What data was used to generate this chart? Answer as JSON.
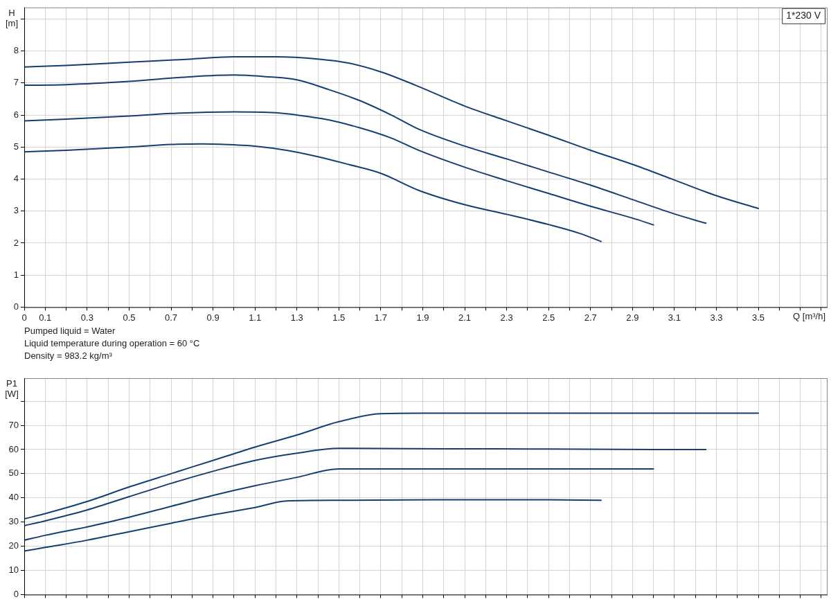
{
  "chart_data": [
    {
      "type": "line",
      "title": "1*230 V",
      "xlabel": "Q [m³/h]",
      "ylabel": "H [m]",
      "marker": "none",
      "grid": true,
      "xlim": [
        0,
        3.83
      ],
      "ylim": [
        0,
        9.36
      ],
      "xticks": [
        0,
        0.1,
        {
          "value": 0.2,
          "label": null
        },
        0.3,
        {
          "value": 0.4,
          "label": null
        },
        0.5,
        {
          "value": 0.6,
          "label": null
        },
        0.7,
        {
          "value": 0.8,
          "label": null
        },
        0.9,
        {
          "value": 1.0,
          "label": null
        },
        1.1,
        {
          "value": 1.2,
          "label": null
        },
        1.3,
        {
          "value": 1.4,
          "label": null
        },
        1.5,
        {
          "value": 1.6,
          "label": null
        },
        1.7,
        {
          "value": 1.8,
          "label": null
        },
        1.9,
        {
          "value": 2.0,
          "label": null
        },
        2.1,
        {
          "value": 2.2,
          "label": null
        },
        2.3,
        {
          "value": 2.4,
          "label": null
        },
        2.5,
        {
          "value": 2.6,
          "label": null
        },
        2.7,
        {
          "value": 2.8,
          "label": null
        },
        2.9,
        {
          "value": 3.0,
          "label": null
        },
        3.1,
        {
          "value": 3.2,
          "label": null
        },
        3.3,
        {
          "value": 3.4,
          "label": null
        },
        3.5,
        {
          "value": 3.6,
          "label": null
        },
        {
          "value": 3.7,
          "label": null
        },
        {
          "value": 3.8,
          "label": null
        }
      ],
      "yticks": [
        0,
        1,
        2,
        3,
        4,
        5,
        6,
        7,
        8,
        {
          "value": 9,
          "label": null
        }
      ],
      "series": [
        {
          "color": "#143f6e",
          "x": [
            0,
            0.2,
            0.5,
            0.8,
            1.0,
            1.2,
            1.4,
            1.55,
            1.7,
            1.87,
            2.1,
            2.3,
            2.5,
            2.7,
            2.9,
            3.1,
            3.3,
            3.5
          ],
          "values": [
            7.5,
            7.55,
            7.65,
            7.75,
            7.82,
            7.82,
            7.75,
            7.62,
            7.35,
            6.92,
            6.28,
            5.82,
            5.37,
            4.9,
            4.46,
            3.97,
            3.48,
            3.08
          ]
        },
        {
          "color": "#143f6e",
          "x": [
            0,
            0.2,
            0.5,
            0.8,
            1.0,
            1.15,
            1.3,
            1.45,
            1.6,
            1.75,
            1.88,
            2.1,
            2.3,
            2.5,
            2.7,
            2.9,
            3.1,
            3.25
          ],
          "values": [
            6.93,
            6.95,
            7.05,
            7.2,
            7.25,
            7.2,
            7.1,
            6.8,
            6.45,
            6.0,
            5.56,
            5.03,
            4.63,
            4.22,
            3.81,
            3.36,
            2.91,
            2.62
          ]
        },
        {
          "color": "#143f6e",
          "x": [
            0,
            0.2,
            0.5,
            0.7,
            1.0,
            1.2,
            1.3,
            1.45,
            1.6,
            1.75,
            1.88,
            2.1,
            2.3,
            2.5,
            2.7,
            2.9,
            3.0
          ],
          "values": [
            5.82,
            5.87,
            5.97,
            6.05,
            6.1,
            6.07,
            6.0,
            5.85,
            5.6,
            5.28,
            4.9,
            4.37,
            3.95,
            3.55,
            3.15,
            2.78,
            2.57
          ]
        },
        {
          "color": "#143f6e",
          "x": [
            0,
            0.2,
            0.5,
            0.7,
            0.85,
            1.0,
            1.1,
            1.25,
            1.4,
            1.55,
            1.7,
            1.88,
            2.1,
            2.3,
            2.5,
            2.65,
            2.75
          ],
          "values": [
            4.85,
            4.9,
            5.0,
            5.08,
            5.1,
            5.07,
            5.03,
            4.9,
            4.7,
            4.45,
            4.18,
            3.65,
            3.2,
            2.9,
            2.58,
            2.3,
            2.05
          ]
        }
      ]
    },
    {
      "type": "line",
      "ylabel": "P1 [W]",
      "marker": "none",
      "grid": true,
      "tick_labels": "y",
      "annotations": [
        "Pumped liquid = Water",
        "Liquid temperature during operation = 60 °C",
        "Density = 983.2 kg/m³"
      ],
      "xlim": [
        0,
        3.83
      ],
      "ylim": [
        0,
        89.5
      ],
      "xticks": [
        {
          "value": 0,
          "label": null
        },
        {
          "value": 0.1,
          "label": null
        },
        {
          "value": 0.2,
          "label": null
        },
        {
          "value": 0.3,
          "label": null
        },
        {
          "value": 0.4,
          "label": null
        },
        {
          "value": 0.5,
          "label": null
        },
        {
          "value": 0.6,
          "label": null
        },
        {
          "value": 0.7,
          "label": null
        },
        {
          "value": 0.8,
          "label": null
        },
        {
          "value": 0.9,
          "label": null
        },
        {
          "value": 1.0,
          "label": null
        },
        {
          "value": 1.1,
          "label": null
        },
        {
          "value": 1.2,
          "label": null
        },
        {
          "value": 1.3,
          "label": null
        },
        {
          "value": 1.4,
          "label": null
        },
        {
          "value": 1.5,
          "label": null
        },
        {
          "value": 1.6,
          "label": null
        },
        {
          "value": 1.7,
          "label": null
        },
        {
          "value": 1.8,
          "label": null
        },
        {
          "value": 1.9,
          "label": null
        },
        {
          "value": 2.0,
          "label": null
        },
        {
          "value": 2.1,
          "label": null
        },
        {
          "value": 2.2,
          "label": null
        },
        {
          "value": 2.3,
          "label": null
        },
        {
          "value": 2.4,
          "label": null
        },
        {
          "value": 2.5,
          "label": null
        },
        {
          "value": 2.6,
          "label": null
        },
        {
          "value": 2.7,
          "label": null
        },
        {
          "value": 2.8,
          "label": null
        },
        {
          "value": 2.9,
          "label": null
        },
        {
          "value": 3.0,
          "label": null
        },
        {
          "value": 3.1,
          "label": null
        },
        {
          "value": 3.2,
          "label": null
        },
        {
          "value": 3.3,
          "label": null
        },
        {
          "value": 3.4,
          "label": null
        },
        {
          "value": 3.5,
          "label": null
        },
        {
          "value": 3.6,
          "label": null
        },
        {
          "value": 3.7,
          "label": null
        },
        {
          "value": 3.8,
          "label": null
        }
      ],
      "yticks": [
        0,
        10,
        20,
        30,
        40,
        50,
        60,
        70,
        {
          "value": 80,
          "label": null
        }
      ],
      "series": [
        {
          "color": "#143f6e",
          "x": [
            0,
            0.1,
            0.3,
            0.5,
            0.7,
            0.9,
            1.1,
            1.3,
            1.5,
            1.7,
            1.9,
            2.5,
            3.0,
            3.5
          ],
          "values": [
            31.3,
            33.5,
            38.5,
            44.5,
            50,
            55.5,
            61,
            66,
            71.5,
            74.8,
            75,
            75,
            75,
            75
          ]
        },
        {
          "color": "#143f6e",
          "x": [
            0,
            0.1,
            0.3,
            0.5,
            0.7,
            0.9,
            1.1,
            1.3,
            1.5,
            2.0,
            2.5,
            3.0,
            3.25
          ],
          "values": [
            28.5,
            30.5,
            35,
            40.5,
            46,
            51,
            55.5,
            58.5,
            60.5,
            60.3,
            60.2,
            60,
            60
          ]
        },
        {
          "color": "#143f6e",
          "x": [
            0,
            0.1,
            0.3,
            0.5,
            0.7,
            0.9,
            1.1,
            1.3,
            1.5,
            2.0,
            2.5,
            3.0
          ],
          "values": [
            22.5,
            24.5,
            28,
            32,
            36.5,
            41,
            45,
            48.5,
            52,
            52,
            52,
            52
          ]
        },
        {
          "color": "#143f6e",
          "x": [
            0,
            0.1,
            0.3,
            0.5,
            0.7,
            0.9,
            1.1,
            1.25,
            1.5,
            2.0,
            2.5,
            2.75
          ],
          "values": [
            18,
            19.5,
            22.5,
            26,
            29.5,
            33,
            36,
            38.7,
            39,
            39.2,
            39.2,
            39
          ]
        }
      ]
    }
  ]
}
